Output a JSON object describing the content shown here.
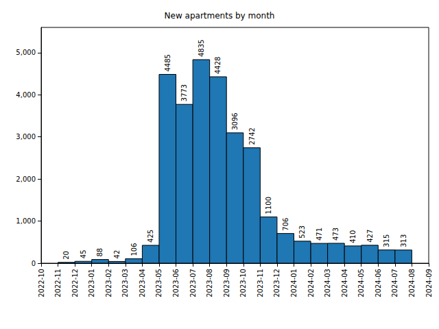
{
  "chart_data": {
    "type": "histogram",
    "title": "New apartments by month",
    "bins": [
      "2022-11",
      "2022-12",
      "2023-01",
      "2023-02",
      "2023-03",
      "2023-04",
      "2023-05",
      "2023-06",
      "2023-07",
      "2023-08",
      "2023-09",
      "2023-10",
      "2023-11",
      "2023-12",
      "2024-01",
      "2024-02",
      "2024-03",
      "2024-04",
      "2024-05",
      "2024-06",
      "2024-07",
      "2024-08"
    ],
    "values": [
      20,
      45,
      88,
      42,
      106,
      425,
      4485,
      3773,
      4835,
      4428,
      3096,
      2742,
      1100,
      706,
      523,
      471,
      473,
      410,
      427,
      315,
      313
    ],
    "color": "#1f77b4",
    "xlim": [
      "2022-10",
      "2024-09"
    ],
    "xticks": [
      "2022-10",
      "2022-11",
      "2022-12",
      "2023-01",
      "2023-02",
      "2023-03",
      "2023-04",
      "2023-05",
      "2023-06",
      "2023-07",
      "2023-08",
      "2023-09",
      "2023-10",
      "2023-11",
      "2023-12",
      "2024-01",
      "2024-02",
      "2024-03",
      "2024-04",
      "2024-05",
      "2024-06",
      "2024-07",
      "2024-08",
      "2024-09"
    ],
    "ylim": [
      0,
      5600
    ],
    "yticks": [
      0,
      1000,
      2000,
      3000,
      4000,
      5000
    ],
    "grid": false,
    "data_labels": true
  }
}
